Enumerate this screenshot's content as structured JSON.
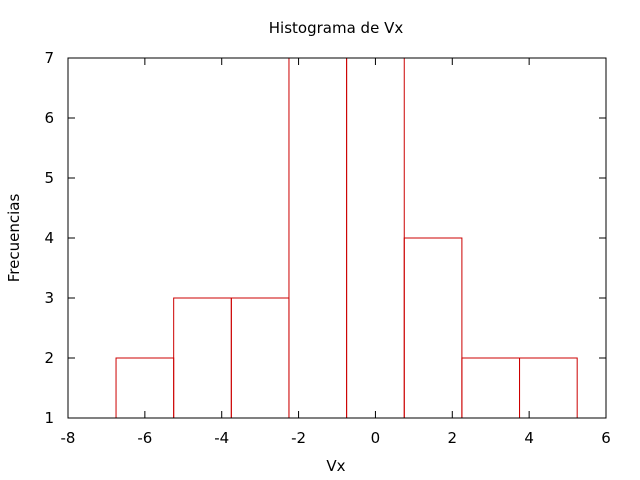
{
  "chart_data": {
    "type": "bar",
    "title": "Histograma de Vx",
    "xlabel": "Vx",
    "ylabel": "Frecuencias",
    "xlim": [
      -8,
      6
    ],
    "ylim": [
      1,
      7
    ],
    "xticks": [
      "-8",
      "-6",
      "-4",
      "-2",
      "0",
      "2",
      "4",
      "6"
    ],
    "yticks": [
      "1",
      "2",
      "3",
      "4",
      "5",
      "6",
      "7"
    ],
    "bar_color": "#cc0000",
    "grid": false,
    "legend": "none",
    "bins": [
      {
        "x0": -6.75,
        "x1": -5.25,
        "value": 2
      },
      {
        "x0": -5.25,
        "x1": -3.75,
        "value": 3
      },
      {
        "x0": -3.75,
        "x1": -2.25,
        "value": 3
      },
      {
        "x0": -2.25,
        "x1": -0.75,
        "value": 7
      },
      {
        "x0": -0.75,
        "x1": 0.75,
        "value": 7
      },
      {
        "x0": 0.75,
        "x1": 2.25,
        "value": 4
      },
      {
        "x0": 2.25,
        "x1": 3.75,
        "value": 2
      },
      {
        "x0": 3.75,
        "x1": 5.25,
        "value": 2
      }
    ]
  }
}
